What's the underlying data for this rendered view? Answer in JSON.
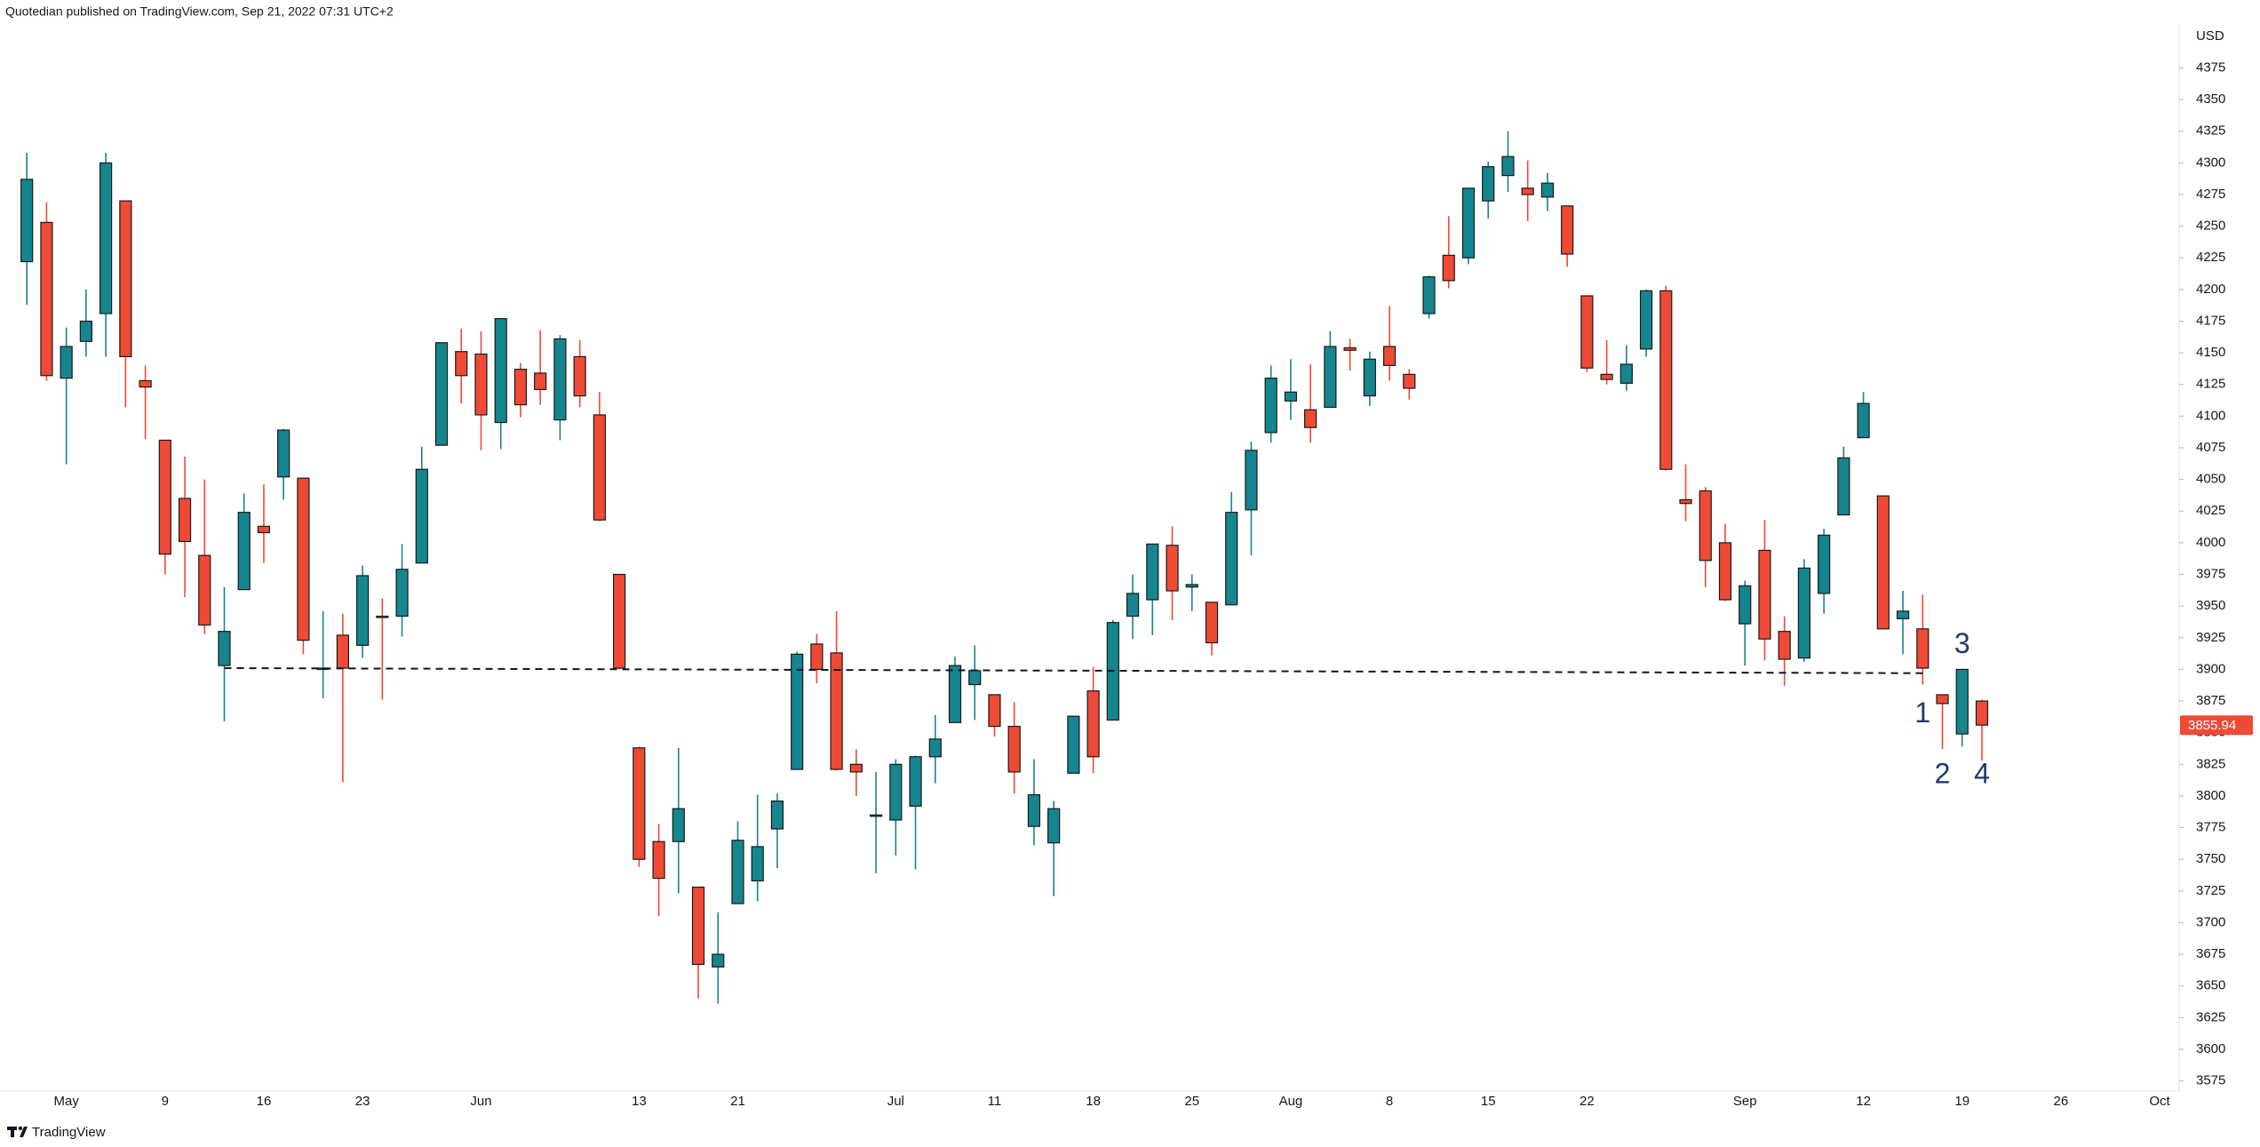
{
  "chart_data": {
    "type": "candlestick",
    "title": "Quotedian published on TradingView.com, Sep 21, 2022 07:31 UTC+2",
    "footer": "TradingView",
    "y_label": "USD",
    "up_color": "#15858f",
    "down_color": "#ee4a36",
    "grid": false,
    "categories": [
      "Apr 28",
      "Apr 29",
      "May 2",
      "May 3",
      "May 4",
      "May 5",
      "May 6",
      "May 9",
      "May 10",
      "May 11",
      "May 12",
      "May 13",
      "May 16",
      "May 17",
      "May 18",
      "May 19",
      "May 20",
      "May 23",
      "May 24",
      "May 25",
      "May 26",
      "May 27",
      "May 31",
      "Jun 1",
      "Jun 2",
      "Jun 3",
      "Jun 6",
      "Jun 7",
      "Jun 8",
      "Jun 9",
      "Jun 10",
      "Jun 13",
      "Jun 14",
      "Jun 15",
      "Jun 16",
      "Jun 17",
      "Jun 21",
      "Jun 22",
      "Jun 23",
      "Jun 24",
      "Jun 27",
      "Jun 28",
      "Jun 29",
      "Jun 30",
      "Jul 1",
      "Jul 5",
      "Jul 6",
      "Jul 7",
      "Jul 8",
      "Jul 11",
      "Jul 12",
      "Jul 13",
      "Jul 14",
      "Jul 15",
      "Jul 18",
      "Jul 19",
      "Jul 20",
      "Jul 21",
      "Jul 22",
      "Jul 25",
      "Jul 26",
      "Jul 27",
      "Jul 28",
      "Jul 29",
      "Aug 1",
      "Aug 2",
      "Aug 3",
      "Aug 4",
      "Aug 5",
      "Aug 8",
      "Aug 9",
      "Aug 10",
      "Aug 11",
      "Aug 12",
      "Aug 15",
      "Aug 16",
      "Aug 17",
      "Aug 18",
      "Aug 19",
      "Aug 22",
      "Aug 23",
      "Aug 24",
      "Aug 25",
      "Aug 26",
      "Aug 29",
      "Aug 30",
      "Aug 31",
      "Sep 1",
      "Sep 2",
      "Sep 6",
      "Sep 7",
      "Sep 8",
      "Sep 9",
      "Sep 12",
      "Sep 13",
      "Sep 14",
      "Sep 15",
      "Sep 16",
      "Sep 19",
      "Sep 20"
    ],
    "open": [
      4222,
      4253,
      4130,
      4159,
      4181,
      4270,
      4128,
      4081,
      4035,
      3990,
      3903,
      3963,
      4013,
      4052,
      4051,
      3900,
      3927,
      3919,
      3942,
      3942,
      3984,
      4077,
      4151,
      4149,
      4095,
      4137,
      4134,
      4097,
      4147,
      4101,
      3975,
      3838,
      3764,
      3764,
      3728,
      3665,
      3715,
      3733,
      3774,
      3821,
      3920,
      3913,
      3825,
      3785,
      3781,
      3792,
      3831,
      3858,
      3888,
      3880,
      3855,
      3776,
      3763,
      3818,
      3883,
      3860,
      3942,
      3955,
      3998,
      3965,
      3953,
      3951,
      4026,
      4087,
      4112,
      4105,
      4107,
      4154,
      4116,
      4155,
      4133,
      4181,
      4227,
      4225,
      4270,
      4290,
      4280,
      4273,
      4266,
      4195,
      4133,
      4126,
      4153,
      4199,
      4034,
      4041,
      4000,
      3936,
      3994,
      3930,
      3909,
      3960,
      4022,
      4083,
      4037,
      3940,
      3932,
      3880,
      3849,
      3875
    ],
    "high": [
      4308,
      4269,
      4170,
      4200,
      4308,
      4270,
      4140,
      4081,
      4068,
      4050,
      3965,
      4039,
      4046,
      4090,
      4051,
      3946,
      3944,
      3982,
      3956,
      3999,
      4076,
      4158,
      4169,
      4167,
      4177,
      4142,
      4168,
      4164,
      4160,
      4119,
      3975,
      3839,
      3778,
      3838,
      3728,
      3708,
      3780,
      3801,
      3802,
      3914,
      3928,
      3946,
      3837,
      3819,
      3829,
      3832,
      3864,
      3910,
      3919,
      3880,
      3874,
      3829,
      3796,
      3863,
      3902,
      3939,
      3975,
      3999,
      4013,
      3975,
      3953,
      4040,
      4080,
      4140,
      4145,
      4141,
      4167,
      4161,
      4151,
      4187,
      4137,
      4211,
      4258,
      4280,
      4301,
      4325,
      4302,
      4292,
      4266,
      4195,
      4160,
      4156,
      4200,
      4203,
      4062,
      4044,
      4015,
      3970,
      4018,
      3942,
      3987,
      4011,
      4076,
      4119,
      4037,
      3962,
      3959,
      3880,
      3900,
      3876
    ],
    "low": [
      4188,
      4128,
      4062,
      4147,
      4147,
      4107,
      4082,
      3975,
      3957,
      3928,
      3859,
      3963,
      3984,
      4034,
      3912,
      3877,
      3811,
      3909,
      3876,
      3926,
      3984,
      4077,
      4110,
      4073,
      4074,
      4099,
      4109,
      4081,
      4107,
      4017,
      3900,
      3744,
      3705,
      3723,
      3640,
      3636,
      3715,
      3717,
      3743,
      3821,
      3889,
      3820,
      3800,
      3739,
      3753,
      3742,
      3810,
      3858,
      3860,
      3847,
      3802,
      3761,
      3721,
      3818,
      3818,
      3860,
      3924,
      3927,
      3939,
      3946,
      3911,
      3951,
      3990,
      4079,
      4097,
      4079,
      4107,
      4136,
      4108,
      4128,
      4113,
      4177,
      4201,
      4220,
      4256,
      4277,
      4254,
      4262,
      4218,
      4135,
      4125,
      4120,
      4147,
      4057,
      4017,
      3965,
      3954,
      3903,
      3907,
      3887,
      3906,
      3944,
      4022,
      4083,
      3932,
      3912,
      3888,
      3837,
      3839,
      3828
    ],
    "close": [
      4287,
      4132,
      4155,
      4175,
      4300,
      4147,
      4123,
      3991,
      4001,
      3935,
      3930,
      4024,
      4008,
      4089,
      3923,
      3901,
      3901,
      3974,
      3941,
      3979,
      4058,
      4158,
      4132,
      4101,
      4177,
      4109,
      4121,
      4161,
      4116,
      4018,
      3901,
      3750,
      3735,
      3790,
      3667,
      3675,
      3765,
      3760,
      3796,
      3912,
      3900,
      3821,
      3819,
      3785,
      3825,
      3831,
      3845,
      3903,
      3899,
      3855,
      3819,
      3801,
      3790,
      3863,
      3831,
      3937,
      3960,
      3999,
      3962,
      3967,
      3921,
      4024,
      4073,
      4130,
      4119,
      4091,
      4155,
      4152,
      4145,
      4140,
      4122,
      4210,
      4207,
      4280,
      4297,
      4305,
      4275,
      4284,
      4228,
      4138,
      4129,
      4141,
      4199,
      4058,
      4031,
      3986,
      3955,
      3966,
      3924,
      3908,
      3980,
      4006,
      4067,
      4110,
      3932,
      3946,
      3901,
      3873,
      3900,
      3856
    ],
    "last_price": 3855.94,
    "ylim": [
      3567,
      4409
    ],
    "yticks": [
      3575,
      3600,
      3625,
      3650,
      3675,
      3700,
      3725,
      3750,
      3775,
      3800,
      3825,
      3850,
      3875,
      3900,
      3925,
      3950,
      3975,
      4000,
      4025,
      4050,
      4075,
      4100,
      4125,
      4150,
      4175,
      4200,
      4225,
      4250,
      4275,
      4300,
      4325,
      4350,
      4375
    ],
    "xticks": [
      {
        "value": "May 2",
        "label": "May"
      },
      {
        "value": "May 9",
        "label": "9"
      },
      {
        "value": "May 16",
        "label": "16"
      },
      {
        "value": "May 23",
        "label": "23"
      },
      {
        "value": "Jun 1",
        "label": "Jun"
      },
      {
        "value": "Jun 13",
        "label": "13"
      },
      {
        "value": "Jun 21",
        "label": "21"
      },
      {
        "value": "Jul 1",
        "label": "Jul"
      },
      {
        "value": "Jul 11",
        "label": "11"
      },
      {
        "value": "Jul 18",
        "label": "18"
      },
      {
        "value": "Jul 25",
        "label": "25"
      },
      {
        "value": "Aug 1",
        "label": "Aug"
      },
      {
        "value": "Aug 8",
        "label": "8"
      },
      {
        "value": "Aug 15",
        "label": "15"
      },
      {
        "value": "Aug 22",
        "label": "22"
      },
      {
        "value": "Sep 1",
        "label": "Sep"
      },
      {
        "value": "Sep 12",
        "label": "12"
      },
      {
        "value": "Sep 19",
        "label": "19"
      },
      {
        "value": "Sep 26",
        "label": "26"
      },
      {
        "value": "Oct 3",
        "label": "Oct"
      }
    ],
    "trendlines": [
      {
        "x1": "May 12",
        "y1": 3901,
        "x2": "Sep 15",
        "y2": 3897
      }
    ],
    "annotations": [
      {
        "text": "1",
        "x": "Sep 15",
        "y": 3864
      },
      {
        "text": "2",
        "x": "Sep 16",
        "y": 3816
      },
      {
        "text": "3",
        "x": "Sep 19",
        "y": 3919
      },
      {
        "text": "4",
        "x": "Sep 20",
        "y": 3816
      }
    ]
  }
}
